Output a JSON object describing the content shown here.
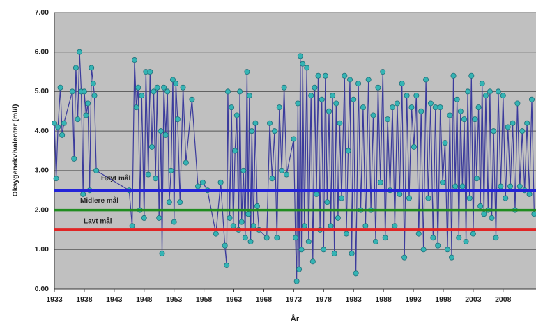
{
  "chart_data": {
    "type": "line",
    "y_label": "Oksygenekvivalenter (ml/l)",
    "x_label": "År",
    "xlim": [
      1933,
      2013.5
    ],
    "ylim": [
      0,
      7
    ],
    "xticks": [
      1933,
      1938,
      1943,
      1948,
      1953,
      1958,
      1963,
      1968,
      1973,
      1978,
      1983,
      1988,
      1993,
      1998,
      2003,
      2008
    ],
    "yticks": [
      {
        "value": 0,
        "label": "0.00"
      },
      {
        "value": 1,
        "label": "1.00"
      },
      {
        "value": 2,
        "label": "2.00"
      },
      {
        "value": 3,
        "label": "3.00"
      },
      {
        "value": 4,
        "label": "4.00"
      },
      {
        "value": 5,
        "label": "5.00"
      },
      {
        "value": 6,
        "label": "6.00"
      },
      {
        "value": 7,
        "label": "7.00"
      }
    ],
    "grid": true,
    "background": "#c0c0c0",
    "series": [
      {
        "color": "#3b3b9c",
        "marker_color": "#35b4b4",
        "x": [
          1933.0,
          1933.3,
          1933.6,
          1934.0,
          1934.3,
          1934.6,
          1936.0,
          1936.3,
          1936.6,
          1936.9,
          1937.2,
          1937.5,
          1937.8,
          1938.0,
          1938.3,
          1938.6,
          1938.9,
          1939.2,
          1939.5,
          1939.7,
          1940.0,
          1945.5,
          1946.0,
          1946.4,
          1946.7,
          1947.0,
          1947.3,
          1947.6,
          1948.0,
          1948.3,
          1948.7,
          1949.0,
          1949.3,
          1949.6,
          1949.9,
          1950.2,
          1950.5,
          1950.8,
          1951.0,
          1951.3,
          1951.6,
          1951.9,
          1952.2,
          1952.5,
          1952.8,
          1953.0,
          1953.3,
          1953.6,
          1954.0,
          1954.5,
          1955.0,
          1956.0,
          1957.0,
          1957.8,
          1958.6,
          1960.0,
          1960.8,
          1961.5,
          1961.8,
          1962.0,
          1962.3,
          1962.6,
          1962.9,
          1963.2,
          1963.5,
          1963.8,
          1964.0,
          1964.3,
          1964.6,
          1964.9,
          1965.2,
          1965.4,
          1965.6,
          1965.8,
          1966.0,
          1966.3,
          1966.6,
          1966.9,
          1967.2,
          1968.5,
          1969.0,
          1969.4,
          1969.8,
          1970.2,
          1970.6,
          1971.0,
          1971.4,
          1971.8,
          1973.0,
          1973.3,
          1973.5,
          1973.7,
          1973.9,
          1974.1,
          1974.3,
          1974.5,
          1974.8,
          1975.2,
          1975.5,
          1975.9,
          1976.2,
          1976.5,
          1976.8,
          1977.1,
          1977.4,
          1977.7,
          1978.0,
          1978.3,
          1978.6,
          1978.9,
          1979.2,
          1979.5,
          1979.8,
          1980.1,
          1980.4,
          1980.7,
          1981.0,
          1981.5,
          1981.8,
          1982.1,
          1982.4,
          1982.7,
          1983.0,
          1983.4,
          1983.8,
          1984.2,
          1984.6,
          1985.0,
          1985.5,
          1985.9,
          1986.3,
          1986.7,
          1987.1,
          1987.5,
          1987.9,
          1988.3,
          1988.7,
          1989.1,
          1989.5,
          1989.9,
          1990.3,
          1990.7,
          1991.1,
          1991.5,
          1991.9,
          1992.3,
          1992.7,
          1993.1,
          1993.5,
          1993.9,
          1994.3,
          1994.7,
          1995.1,
          1995.5,
          1995.9,
          1996.3,
          1996.7,
          1997.1,
          1997.5,
          1997.9,
          1998.3,
          1998.7,
          1999.1,
          1999.4,
          1999.7,
          2000.0,
          2000.3,
          2000.6,
          2000.9,
          2001.2,
          2001.5,
          2001.8,
          2002.1,
          2002.4,
          2002.7,
          2003.0,
          2003.3,
          2003.6,
          2003.9,
          2004.2,
          2004.5,
          2004.8,
          2005.1,
          2005.5,
          2005.8,
          2006.1,
          2006.4,
          2006.8,
          2007.2,
          2007.6,
          2008.0,
          2008.4,
          2008.8,
          2009.2,
          2009.6,
          2010.0,
          2010.4,
          2010.8,
          2011.2,
          2011.6,
          2012.0,
          2012.4,
          2012.8,
          2013.2
        ],
        "values": [
          4.2,
          2.8,
          4.1,
          5.1,
          3.9,
          4.2,
          5.0,
          3.3,
          5.6,
          4.3,
          6.0,
          5.0,
          2.4,
          5.0,
          4.4,
          4.7,
          2.5,
          5.6,
          5.2,
          4.9,
          3.0,
          2.5,
          1.6,
          5.8,
          4.6,
          5.1,
          2.0,
          4.9,
          1.8,
          5.5,
          2.9,
          5.5,
          3.6,
          5.0,
          2.8,
          5.1,
          1.8,
          4.0,
          0.9,
          5.1,
          3.9,
          5.0,
          2.2,
          3.0,
          5.3,
          1.7,
          5.2,
          4.3,
          2.2,
          5.1,
          3.2,
          4.8,
          2.6,
          2.7,
          2.5,
          1.4,
          2.7,
          1.1,
          0.6,
          5.0,
          1.8,
          4.6,
          1.6,
          3.5,
          4.4,
          1.5,
          5.0,
          1.7,
          3.0,
          1.3,
          5.5,
          1.9,
          4.9,
          1.2,
          4.0,
          1.6,
          4.2,
          2.1,
          1.5,
          1.3,
          4.2,
          2.8,
          4.0,
          1.3,
          4.6,
          3.0,
          5.1,
          2.9,
          3.8,
          1.3,
          0.2,
          4.7,
          0.5,
          5.9,
          1.0,
          5.7,
          1.6,
          5.6,
          1.2,
          4.9,
          0.7,
          5.1,
          2.4,
          5.4,
          1.5,
          4.8,
          1.0,
          5.4,
          2.2,
          4.5,
          1.6,
          4.9,
          0.9,
          4.7,
          1.8,
          4.2,
          2.3,
          5.4,
          1.4,
          3.5,
          5.3,
          0.9,
          4.8,
          0.4,
          5.2,
          2.0,
          4.6,
          1.6,
          5.3,
          2.0,
          4.4,
          1.2,
          5.1,
          2.7,
          5.5,
          1.3,
          4.3,
          2.5,
          4.6,
          1.6,
          4.7,
          2.4,
          5.2,
          0.8,
          4.9,
          2.3,
          4.6,
          3.6,
          4.9,
          1.4,
          4.5,
          1.0,
          5.3,
          2.3,
          4.7,
          1.3,
          4.6,
          1.1,
          4.6,
          2.7,
          3.7,
          1.0,
          4.4,
          0.8,
          5.4,
          2.6,
          4.8,
          1.3,
          4.5,
          2.6,
          4.3,
          1.2,
          5.0,
          2.3,
          5.4,
          1.4,
          4.3,
          2.8,
          4.6,
          2.1,
          5.2,
          1.9,
          4.9,
          2.0,
          5.0,
          1.8,
          4.0,
          1.3,
          5.0,
          2.6,
          4.9,
          2.3,
          4.1,
          2.6,
          4.2,
          2.0,
          4.7,
          2.6,
          4.0,
          2.5,
          4.2,
          2.4,
          4.8,
          1.9
        ]
      }
    ],
    "reference_lines": [
      {
        "name": "Høyt mål",
        "value": 2.5,
        "color": "#2323d8"
      },
      {
        "name": "Midlere mål",
        "value": 2.0,
        "color": "#1f8c1f"
      },
      {
        "name": "Lavt mål",
        "value": 1.5,
        "color": "#e02424"
      }
    ]
  }
}
